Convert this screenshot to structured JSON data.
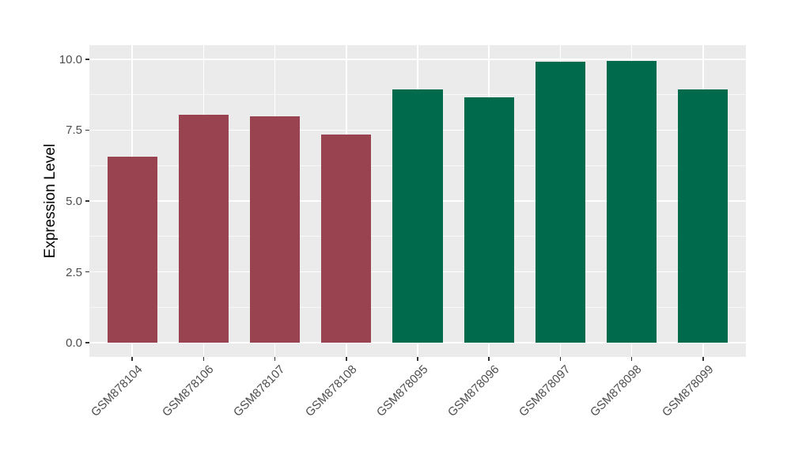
{
  "chart_data": {
    "type": "bar",
    "title": "",
    "xlabel": "",
    "ylabel": "Expression Level",
    "categories": [
      "GSM878104",
      "GSM878106",
      "GSM878107",
      "GSM878108",
      "GSM878095",
      "GSM878096",
      "GSM878097",
      "GSM878098",
      "GSM878099"
    ],
    "values": [
      6.55,
      8.05,
      8.0,
      7.35,
      8.95,
      8.65,
      9.9,
      9.95,
      8.95
    ],
    "bar_colors": [
      "#9A4350",
      "#9A4350",
      "#9A4350",
      "#9A4350",
      "#006B4C",
      "#006B4C",
      "#006B4C",
      "#006B4C",
      "#006B4C"
    ],
    "y_ticks": [
      {
        "value": 0.0,
        "label": "0.0"
      },
      {
        "value": 2.5,
        "label": "2.5"
      },
      {
        "value": 5.0,
        "label": "5.0"
      },
      {
        "value": 7.5,
        "label": "7.5"
      },
      {
        "value": 10.0,
        "label": "10.0"
      }
    ],
    "y_minor": [
      1.25,
      3.75,
      6.25,
      8.75
    ],
    "ylim": [
      -0.5,
      10.5
    ],
    "x_expand": 0.6,
    "bar_width_fraction": 0.7,
    "grid": true,
    "legend": "none",
    "colors": {
      "group1_fill": "#9A4350",
      "group2_fill": "#006B4C",
      "panel_background": "#EBEBEB",
      "gridline": "#FFFFFF",
      "axis_text": "#4D4D4D",
      "tick_mark": "#333333"
    }
  }
}
